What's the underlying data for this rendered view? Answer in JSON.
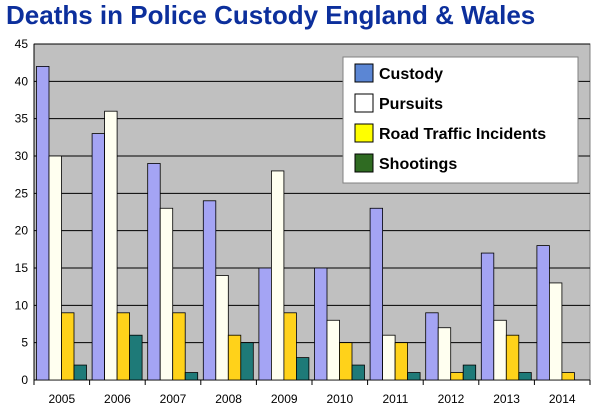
{
  "chart_data": {
    "type": "bar",
    "title": "Deaths in Police Custody England & Wales",
    "categories": [
      "2005",
      "2006",
      "2007",
      "2008",
      "2009",
      "2010",
      "2011",
      "2012",
      "2013",
      "2014"
    ],
    "series": [
      {
        "name": "Custody",
        "color": "#a4a4f4",
        "values": [
          42,
          33,
          29,
          24,
          15,
          15,
          23,
          9,
          17,
          18
        ]
      },
      {
        "name": "Pursuits",
        "color": "#fffff0",
        "values": [
          30,
          36,
          23,
          14,
          28,
          8,
          6,
          7,
          8,
          13
        ]
      },
      {
        "name": "Road Traffic Incidents",
        "color": "#ffd21a",
        "values": [
          9,
          9,
          9,
          6,
          9,
          5,
          5,
          1,
          6,
          1
        ]
      },
      {
        "name": "Shootings",
        "color": "#1e7a78",
        "values": [
          2,
          6,
          1,
          5,
          3,
          2,
          1,
          2,
          1,
          0
        ]
      }
    ],
    "legend_swatch_colors": [
      "#5b86d4",
      "#ffffff",
      "#ffff00",
      "#2f6b22"
    ],
    "ylim": [
      0,
      45
    ],
    "yticks": [
      0,
      5,
      10,
      15,
      20,
      25,
      30,
      35,
      40,
      45
    ],
    "grid": true,
    "legend_position": "top-right",
    "plot_background": "#c0c0c0"
  }
}
